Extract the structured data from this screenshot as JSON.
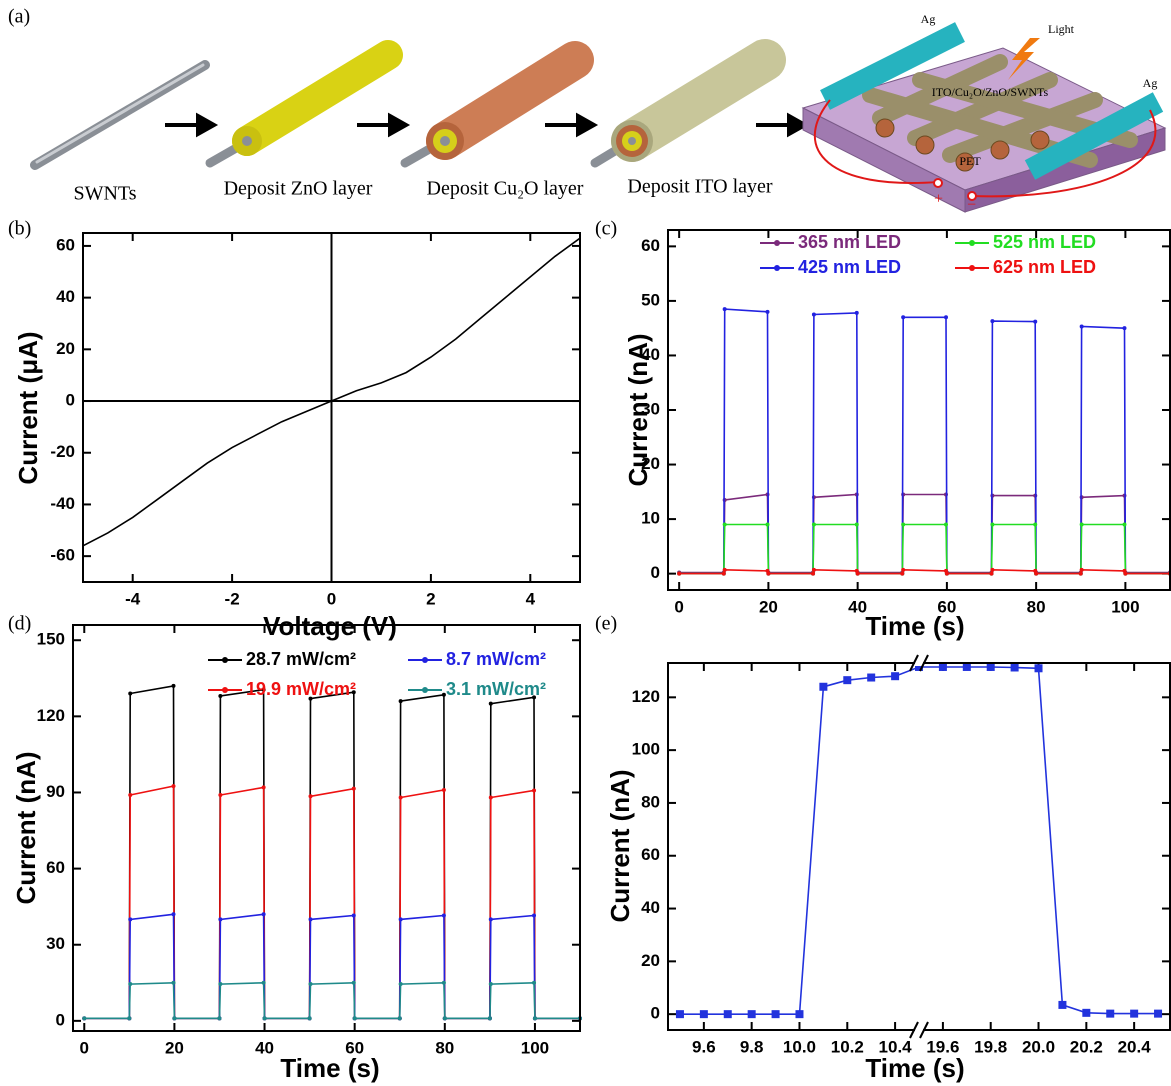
{
  "diagram": {
    "panel_label": "(a)",
    "steps": [
      "SWNTs",
      "Deposit ZnO layer",
      "Deposit Cu₂O layer",
      "Deposit ITO layer"
    ],
    "device": {
      "electrodes": [
        "Ag",
        "Ag"
      ],
      "light": "Light",
      "layers": "ITO/Cu₂O/ZnO/SWNTs",
      "substrate": "PET",
      "plus": "+",
      "minus": "−"
    }
  },
  "chart_data": [
    {
      "type": "line",
      "panel_label": "(b)",
      "x_label": "Voltage (V)",
      "y_label": "Current (μA)",
      "x": [
        -5,
        -4.5,
        -4,
        -3.5,
        -3,
        -2.5,
        -2,
        -1.5,
        -1,
        -0.5,
        0,
        0.5,
        1,
        1.5,
        2,
        2.5,
        3,
        3.5,
        4,
        4.5,
        5
      ],
      "series": [
        {
          "color": "#000000",
          "values": [
            -56,
            -51,
            -45,
            -38,
            -31,
            -24,
            -18,
            -13,
            -8,
            -4,
            0,
            4,
            7,
            11,
            17,
            24,
            32,
            40,
            48,
            56,
            63
          ]
        }
      ],
      "xlim": [
        -5,
        5
      ],
      "ylim": [
        -70,
        65
      ],
      "xticks": [
        -4,
        -2,
        0,
        2,
        4
      ],
      "yticks": [
        -60,
        -40,
        -20,
        0,
        20,
        40,
        60
      ],
      "zero_lines": true
    },
    {
      "type": "line",
      "panel_label": "(c)",
      "x_label": "Time (s)",
      "y_label": "Current (nA)",
      "x": [
        0,
        10,
        10.2,
        19.8,
        20,
        30,
        30.2,
        39.8,
        40,
        50,
        50.2,
        59.8,
        60,
        70,
        70.2,
        79.8,
        80,
        90,
        90.2,
        99.8,
        100,
        110
      ],
      "series": [
        {
          "name": "365 nm LED",
          "color": "#7b2a7b",
          "values": [
            0.2,
            0.2,
            13.5,
            14.5,
            0.2,
            0.2,
            14,
            14.5,
            0.2,
            0.2,
            14.5,
            14.5,
            0.2,
            0.2,
            14.3,
            14.3,
            0.2,
            0.2,
            14,
            14.3,
            0.2,
            0.2
          ]
        },
        {
          "name": "425 nm LED",
          "color": "#2222e0",
          "values": [
            0,
            0,
            48.5,
            48,
            0,
            0,
            47.5,
            47.8,
            0,
            0,
            47,
            47,
            0,
            0,
            46.3,
            46.2,
            0,
            0,
            45.3,
            45,
            0,
            0
          ]
        },
        {
          "name": "525 nm LED",
          "color": "#22dd22",
          "values": [
            0,
            0,
            9,
            9,
            0,
            0,
            9,
            9,
            0,
            0,
            9,
            9,
            0,
            0,
            9,
            9,
            0,
            0,
            9,
            9,
            0,
            0
          ]
        },
        {
          "name": "625 nm LED",
          "color": "#ee1111",
          "values": [
            0,
            0,
            0.7,
            0.5,
            0,
            0,
            0.7,
            0.5,
            0,
            0,
            0.7,
            0.5,
            0,
            0,
            0.7,
            0.5,
            0,
            0,
            0.7,
            0.5,
            0,
            0
          ]
        }
      ],
      "xlim": [
        -2.5,
        110
      ],
      "ylim": [
        -3,
        63
      ],
      "xticks": [
        0,
        20,
        40,
        60,
        80,
        100
      ],
      "yticks": [
        0,
        10,
        20,
        30,
        40,
        50,
        60
      ],
      "legend": "upper right",
      "marker": "circle"
    },
    {
      "type": "line",
      "panel_label": "(d)",
      "x_label": "Time (s)",
      "y_label": "Current (nA)",
      "x": [
        0,
        10,
        10.2,
        19.8,
        20,
        30,
        30.2,
        39.8,
        40,
        50,
        50.2,
        59.8,
        60,
        70,
        70.2,
        79.8,
        80,
        90,
        90.2,
        99.8,
        100,
        110
      ],
      "series": [
        {
          "name": "28.7 mW/cm²",
          "color": "#000000",
          "values": [
            1,
            1,
            129,
            132,
            1,
            1,
            128,
            130.5,
            1,
            1,
            127,
            129.5,
            1,
            1,
            126,
            128.5,
            1,
            1,
            125,
            127.5,
            1,
            1
          ]
        },
        {
          "name": "19.9 mW/cm²",
          "color": "#ee1111",
          "values": [
            1,
            1,
            89,
            92.5,
            1,
            1,
            89,
            92,
            1,
            1,
            88.5,
            91.5,
            1,
            1,
            88,
            91,
            1,
            1,
            88,
            90.8,
            1,
            1
          ]
        },
        {
          "name": "8.7 mW/cm²",
          "color": "#2222e0",
          "values": [
            1,
            1,
            40,
            42,
            1,
            1,
            40,
            42,
            1,
            1,
            40,
            41.5,
            1,
            1,
            40,
            41.5,
            1,
            1,
            40,
            41.5,
            1,
            1
          ]
        },
        {
          "name": "3.1 mW/cm²",
          "color": "#1f8a8a",
          "values": [
            1,
            1,
            14.5,
            15,
            1,
            1,
            14.5,
            15,
            1,
            1,
            14.5,
            15,
            1,
            1,
            14.5,
            15,
            1,
            1,
            14.5,
            15,
            1,
            1
          ]
        }
      ],
      "xlim": [
        -2.5,
        110
      ],
      "ylim": [
        -4,
        156
      ],
      "xticks": [
        0,
        20,
        40,
        60,
        80,
        100
      ],
      "yticks": [
        0,
        30,
        60,
        90,
        120,
        150
      ],
      "legend": "upper center",
      "marker": "circle"
    },
    {
      "type": "line",
      "panel_label": "(e)",
      "x_label": "Time (s)",
      "y_label": "Current (nA)",
      "x": [
        9.5,
        9.6,
        9.7,
        9.8,
        9.9,
        10.0,
        10.1,
        10.2,
        10.3,
        10.4,
        19.5,
        19.6,
        19.7,
        19.8,
        19.9,
        20.0,
        20.1,
        20.2,
        20.3,
        20.4,
        20.5
      ],
      "series": [
        {
          "color": "#2233dd",
          "values": [
            0,
            0,
            0,
            0,
            0,
            0,
            124,
            126.5,
            127.5,
            128,
            131.5,
            131.5,
            131.5,
            131.5,
            131.3,
            131,
            3.5,
            0.5,
            0.2,
            0.2,
            0.2
          ]
        }
      ],
      "xlim": [
        9.45,
        20.55
      ],
      "xbreak": [
        10.5,
        19.5
      ],
      "ylim": [
        -6,
        133
      ],
      "xticks": [
        9.6,
        9.8,
        {
          "value": 10,
          "label": "10.0"
        },
        10.2,
        10.4,
        19.6,
        19.8,
        {
          "value": 20,
          "label": "20.0"
        },
        20.2,
        20.4
      ],
      "yticks": [
        0,
        20,
        40,
        60,
        80,
        100,
        120
      ],
      "marker": "square"
    }
  ]
}
